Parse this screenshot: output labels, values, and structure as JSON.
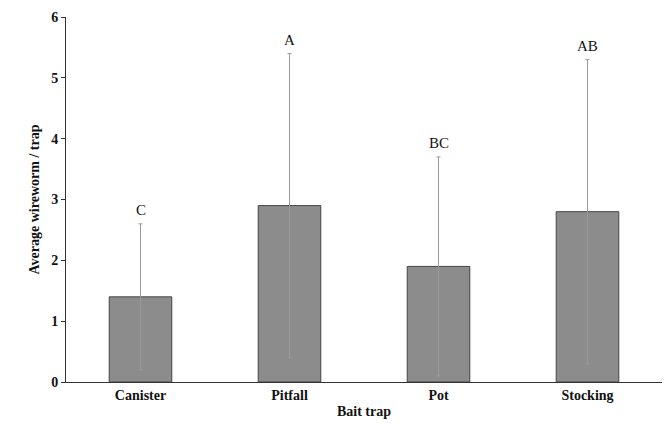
{
  "chart_data": {
    "type": "bar",
    "x_label": "Bait trap",
    "y_label": "Average wireworm / trap",
    "categories": [
      "Canister",
      "Pitfall",
      "Pot",
      "Stocking"
    ],
    "values": [
      1.4,
      2.9,
      1.9,
      2.8
    ],
    "errors": [
      1.2,
      2.5,
      1.8,
      2.5
    ],
    "annotations": [
      "C",
      "A",
      "BC",
      "AB"
    ],
    "color": "#8c8c8c",
    "ylim": [
      0,
      6
    ],
    "yticks": [
      0,
      1,
      2,
      3,
      4,
      5,
      6
    ],
    "grid": false
  }
}
